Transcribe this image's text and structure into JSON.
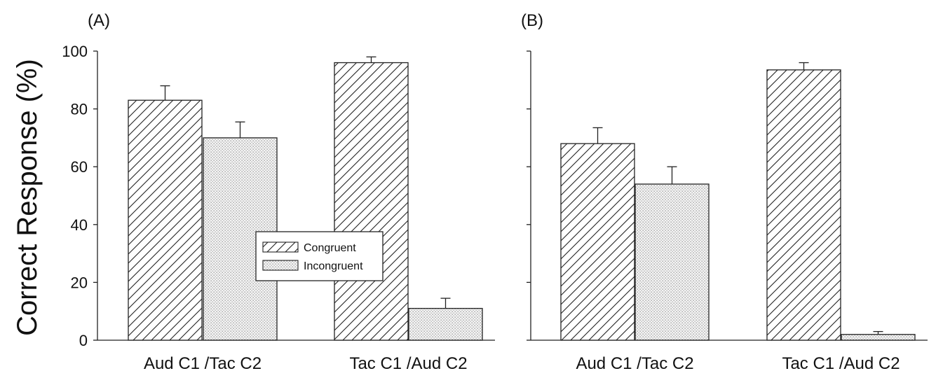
{
  "ylabel": "Correct Response (%)",
  "legend": {
    "entries": [
      {
        "label": "Congruent",
        "pattern": "hatch"
      },
      {
        "label": "Incongruent",
        "pattern": "dots"
      }
    ]
  },
  "chart_data": [
    {
      "type": "bar",
      "panel_label": "(A)",
      "categories": [
        "Aud C1 /Tac C2",
        "Tac C1 /Aud C2"
      ],
      "series": [
        {
          "name": "Congruent",
          "values": [
            83,
            96
          ],
          "errors": [
            5,
            2
          ]
        },
        {
          "name": "Incongruent",
          "values": [
            70,
            11
          ],
          "errors": [
            5.5,
            3.5
          ]
        }
      ],
      "ylabel": "Correct Response (%)",
      "ylim": [
        0,
        100
      ],
      "yticks": [
        "0",
        "20",
        "40",
        "60",
        "80",
        "100"
      ],
      "legend_position": "center",
      "grid": false
    },
    {
      "type": "bar",
      "panel_label": "(B)",
      "categories": [
        "Aud C1 /Tac C2",
        "Tac C1 /Aud C2"
      ],
      "series": [
        {
          "name": "Congruent",
          "values": [
            68,
            93.5
          ],
          "errors": [
            5.5,
            2.5
          ]
        },
        {
          "name": "Incongruent",
          "values": [
            54,
            2
          ],
          "errors": [
            6,
            1
          ]
        }
      ],
      "ylim": [
        0,
        100
      ],
      "grid": false
    }
  ]
}
